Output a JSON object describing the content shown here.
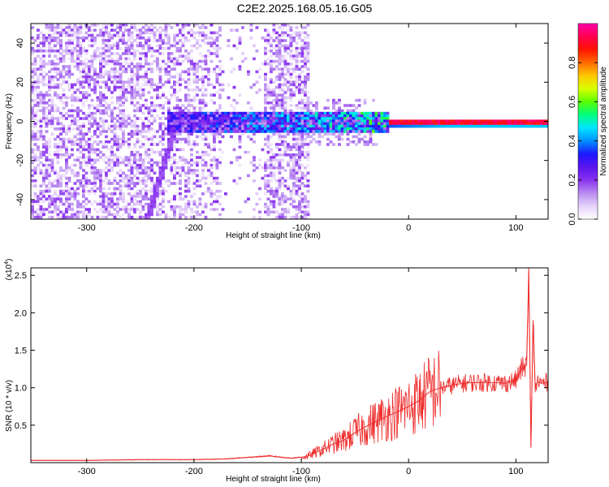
{
  "title": "C2E2.2025.168.05.16.G05",
  "colors": {
    "snr_line": "#ee2b2b",
    "spectrogram_background": "#ffffff",
    "colormap": [
      "#ffffff",
      "#e6d2fa",
      "#b98cf0",
      "#8a32f0",
      "#5a14ee",
      "#1c18ff",
      "#0090ff",
      "#00e5ff",
      "#00ff80",
      "#59ff00",
      "#d8ff00",
      "#ffc800",
      "#ff6a00",
      "#ff1400",
      "#ff0050",
      "#ff00aa"
    ]
  },
  "chart_data": [
    {
      "type": "heatmap",
      "title": "",
      "xlabel": "Height of straight line (km)",
      "ylabel": "Frequency (Hz)",
      "xlim": [
        -352,
        130
      ],
      "ylim": [
        -50,
        50
      ],
      "xticks": [
        -300,
        -200,
        -100,
        0,
        100
      ],
      "xtick_labels": [
        "-300",
        "-200",
        "-100",
        "0",
        "100"
      ],
      "yticks": [
        -40,
        -20,
        0,
        20,
        40
      ],
      "ytick_labels": [
        "-40",
        "-20",
        "0",
        "20",
        "40"
      ],
      "grid": false,
      "colorbar": {
        "label": "Normalized spectral amplitude",
        "range": [
          0,
          1
        ],
        "ticks": [
          0.0,
          0.2,
          0.4,
          0.6,
          0.8
        ],
        "tick_labels": [
          "0.0",
          "0.2",
          "0.4",
          "0.6",
          "0.8"
        ]
      },
      "features": {
        "noise_region_km": [
          -352,
          -95
        ],
        "central_band_hz": 0,
        "central_band_start_km": -225,
        "central_band_peak_amplitude": 0.97
      }
    },
    {
      "type": "line",
      "title": "",
      "xlabel": "Height of straight line (km)",
      "ylabel": "SNR (10 * v/v)",
      "y_multiplier_label": "(x10",
      "y_multiplier_exp": "4",
      "y_multiplier_close": ")",
      "xlim": [
        -352,
        130
      ],
      "ylim": [
        0,
        2.6
      ],
      "xticks": [
        -300,
        -200,
        -100,
        0,
        100
      ],
      "xtick_labels": [
        "-300",
        "-200",
        "-100",
        "0",
        "100"
      ],
      "yticks": [
        0.5,
        1.0,
        1.5,
        2.0,
        2.5
      ],
      "ytick_labels": [
        "0.5",
        "1.0",
        "1.5",
        "2.0",
        "2.5"
      ],
      "grid": false,
      "series": [
        {
          "x": [
            -352,
            -300,
            -250,
            -200,
            -170,
            -150,
            -130,
            -110,
            -95,
            -80,
            -70,
            -60,
            -50,
            -40,
            -30,
            -20,
            -10,
            0,
            10,
            20,
            30,
            40,
            50,
            60,
            70,
            80,
            90,
            100,
            105,
            110,
            112,
            114,
            116,
            118,
            120,
            125,
            130
          ],
          "y": [
            0.03,
            0.03,
            0.04,
            0.04,
            0.05,
            0.07,
            0.09,
            0.06,
            0.08,
            0.18,
            0.25,
            0.3,
            0.4,
            0.48,
            0.55,
            0.62,
            0.68,
            0.75,
            0.83,
            0.95,
            1.0,
            1.03,
            1.06,
            1.07,
            1.07,
            1.07,
            1.06,
            1.1,
            1.25,
            1.3,
            2.55,
            0.2,
            1.9,
            1.0,
            1.08,
            1.06,
            1.07
          ]
        }
      ]
    }
  ]
}
